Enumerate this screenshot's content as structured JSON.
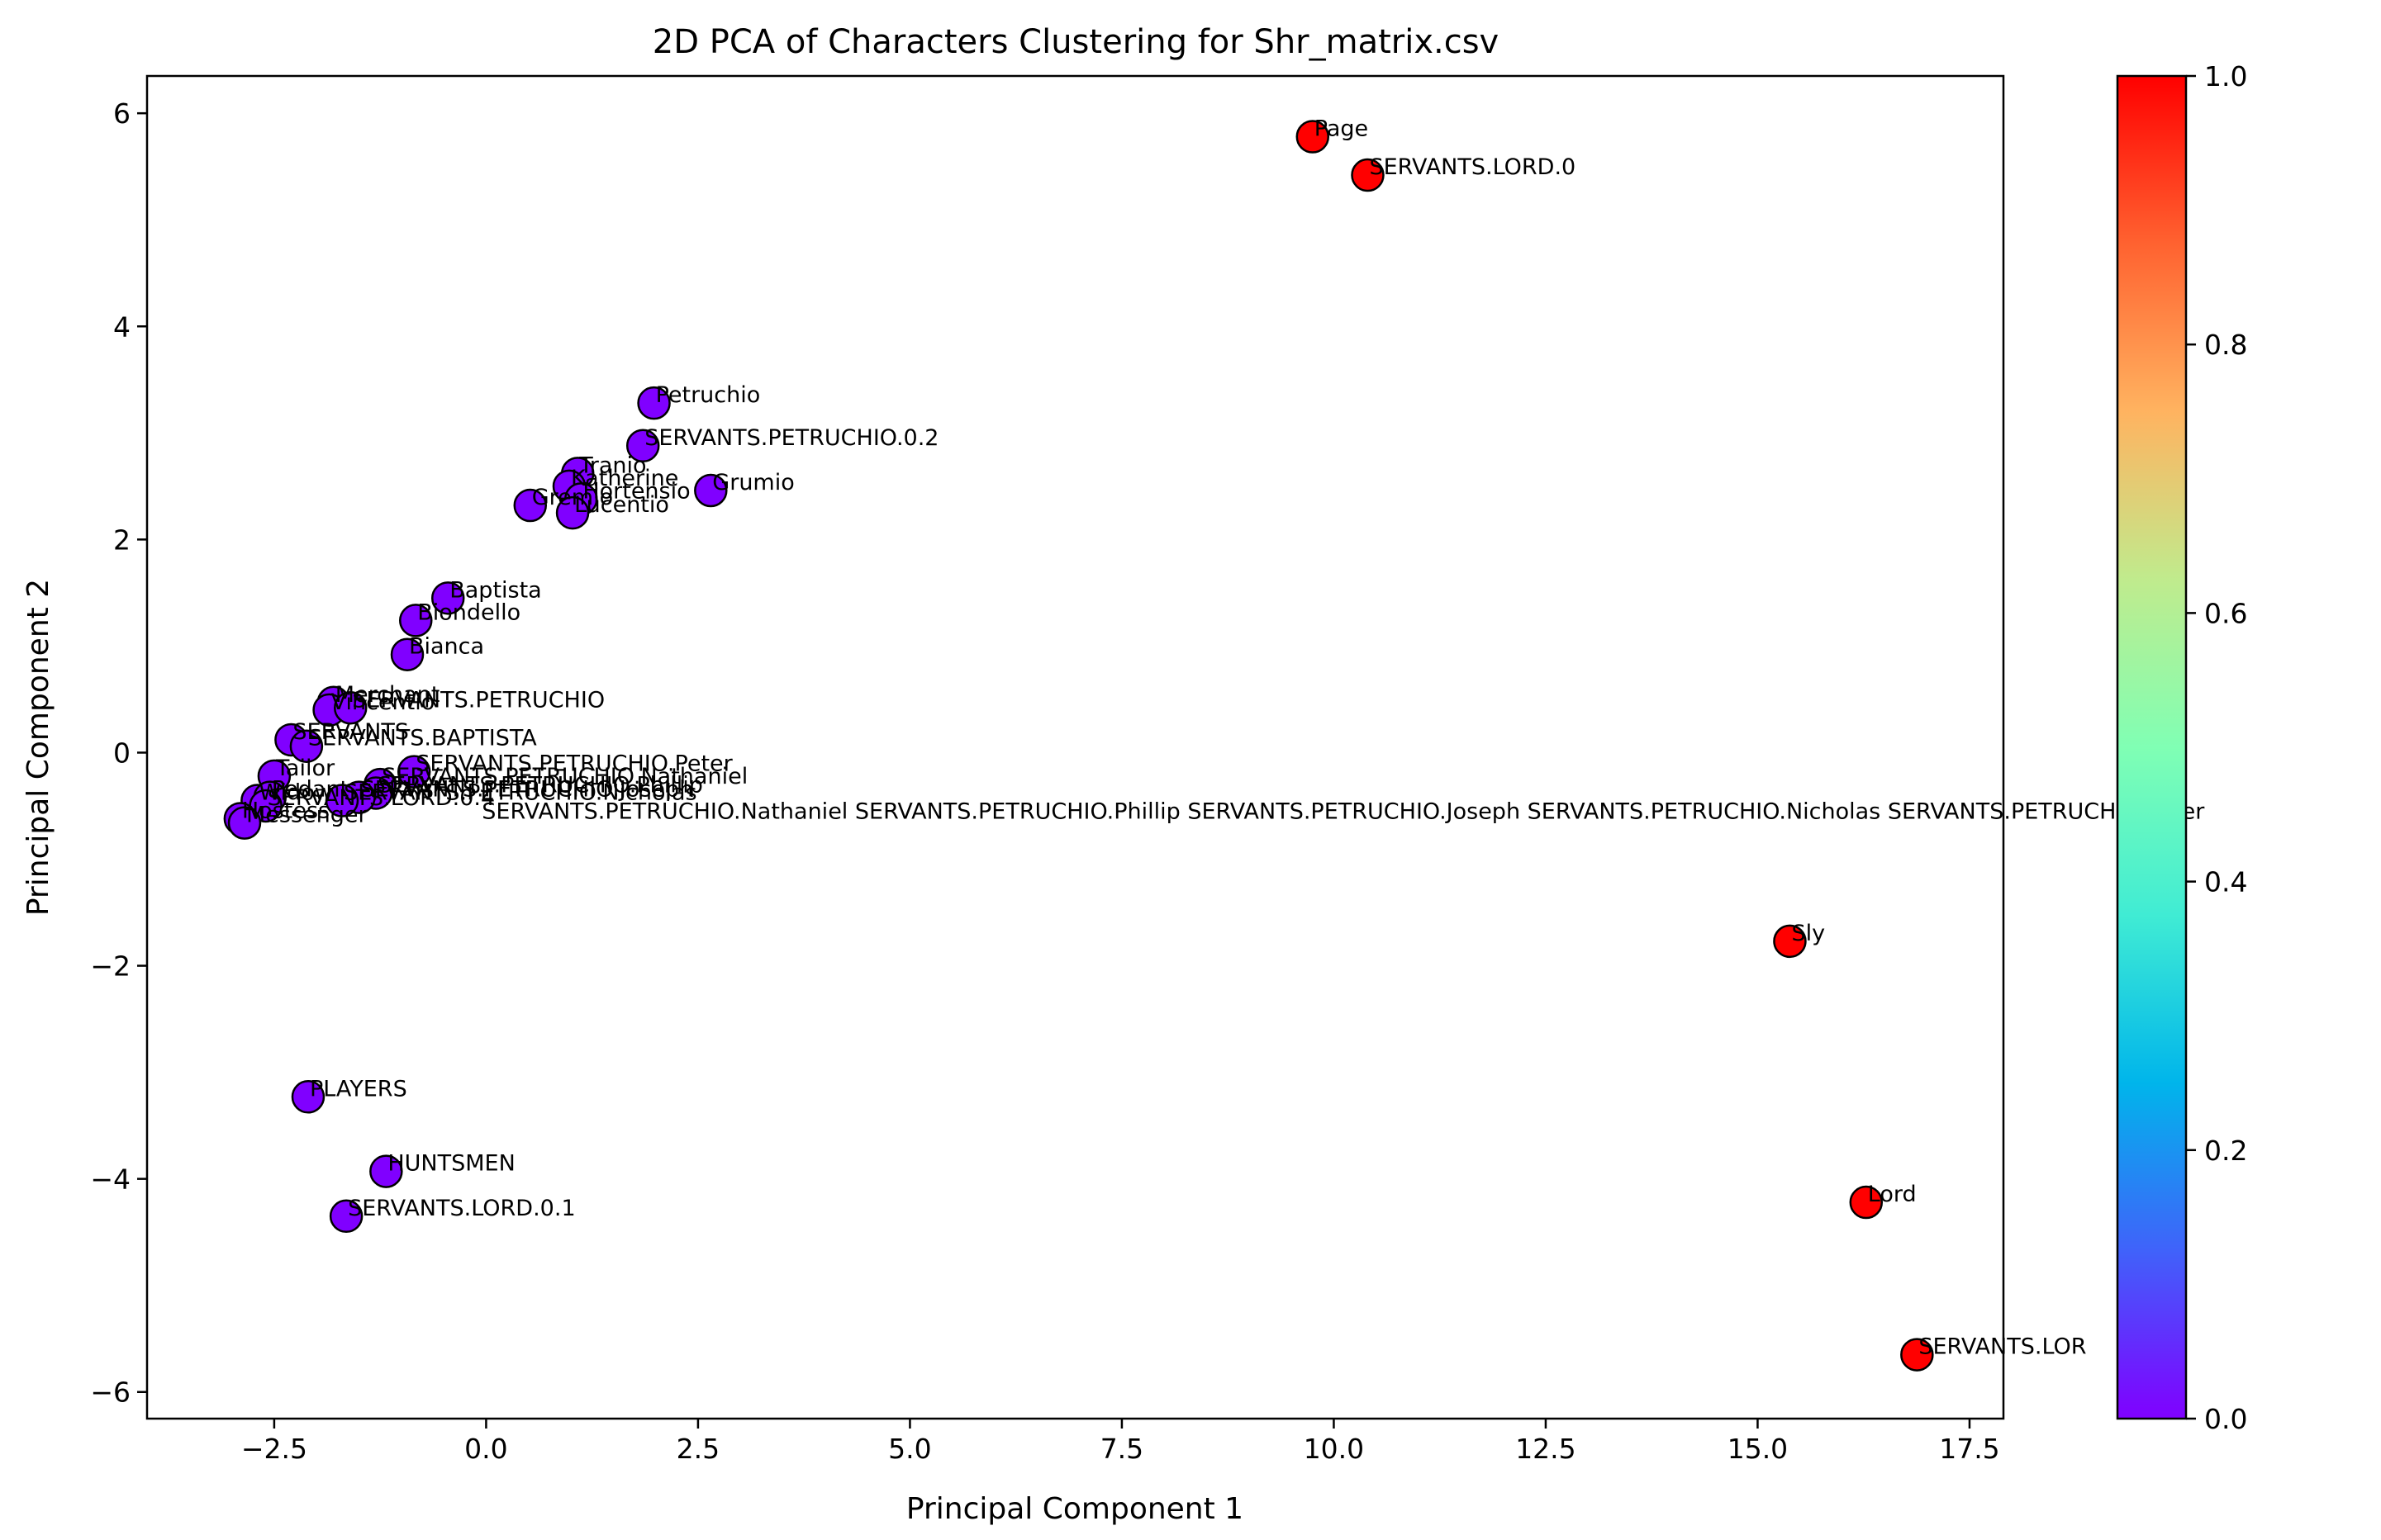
{
  "chart_data": {
    "type": "scatter",
    "title": "2D PCA of Characters Clustering for Shr_matrix.csv",
    "xlabel": "Principal Component 1",
    "ylabel": "Principal Component 2",
    "xlim": [
      -4.0,
      17.9
    ],
    "ylim": [
      -6.25,
      6.35
    ],
    "x_ticks": [
      -2.5,
      0.0,
      2.5,
      5.0,
      7.5,
      10.0,
      12.5,
      15.0,
      17.5
    ],
    "x_tick_labels": [
      "−2.5",
      "0.0",
      "2.5",
      "5.0",
      "7.5",
      "10.0",
      "12.5",
      "15.0",
      "17.5"
    ],
    "y_ticks": [
      -6,
      -4,
      -2,
      0,
      2,
      4,
      6
    ],
    "y_tick_labels": [
      "−6",
      "−4",
      "−2",
      "0",
      "2",
      "4",
      "6"
    ],
    "colorbar": {
      "range": [
        0.0,
        1.0
      ],
      "ticks": [
        0.0,
        0.2,
        0.4,
        0.6,
        0.8,
        1.0
      ],
      "tick_labels": [
        "0.0",
        "0.2",
        "0.4",
        "0.6",
        "0.8",
        "1.0"
      ],
      "colormap": "rainbow"
    },
    "cluster_colors": {
      "0": "#8000ff",
      "1": "#ff0000"
    },
    "points": [
      {
        "label": "Page",
        "x": 9.75,
        "y": 5.78,
        "cluster": 1
      },
      {
        "label": "SERVANTS.LORD.0",
        "x": 10.4,
        "y": 5.42,
        "cluster": 1
      },
      {
        "label": "Sly",
        "x": 15.38,
        "y": -1.77,
        "cluster": 1
      },
      {
        "label": "Lord",
        "x": 16.28,
        "y": -4.22,
        "cluster": 1
      },
      {
        "label": "SERVANTS.LOR",
        "x": 16.88,
        "y": -5.65,
        "cluster": 1
      },
      {
        "label": "Petruchio",
        "x": 1.98,
        "y": 3.28,
        "cluster": 0
      },
      {
        "label": "SERVANTS.PETRUCHIO.0.2",
        "x": 1.85,
        "y": 2.88,
        "cluster": 0
      },
      {
        "label": "Tranio",
        "x": 1.08,
        "y": 2.62,
        "cluster": 0
      },
      {
        "label": "Katherine",
        "x": 0.98,
        "y": 2.5,
        "cluster": 0
      },
      {
        "label": "Hortensio",
        "x": 1.12,
        "y": 2.38,
        "cluster": 0
      },
      {
        "label": "Grumio",
        "x": 2.65,
        "y": 2.46,
        "cluster": 0
      },
      {
        "label": "Gremio",
        "x": 0.52,
        "y": 2.32,
        "cluster": 0
      },
      {
        "label": "Lucentio",
        "x": 1.02,
        "y": 2.25,
        "cluster": 0
      },
      {
        "label": "Baptista",
        "x": -0.45,
        "y": 1.45,
        "cluster": 0
      },
      {
        "label": "Biondello",
        "x": -0.83,
        "y": 1.24,
        "cluster": 0
      },
      {
        "label": "Bianca",
        "x": -0.93,
        "y": 0.92,
        "cluster": 0
      },
      {
        "label": "Merchant",
        "x": -1.8,
        "y": 0.47,
        "cluster": 0
      },
      {
        "label": "Vincentio",
        "x": -1.85,
        "y": 0.4,
        "cluster": 0
      },
      {
        "label": "SERVANTS.PETRUCHIO",
        "x": -1.6,
        "y": 0.42,
        "cluster": 0
      },
      {
        "label": "SERVANTS",
        "x": -2.3,
        "y": 0.12,
        "cluster": 0
      },
      {
        "label": "SERVANTS.BAPTISTA",
        "x": -2.12,
        "y": 0.06,
        "cluster": 0
      },
      {
        "label": "SERVANTS.PETRUCHIO.Peter",
        "x": -0.85,
        "y": -0.18,
        "cluster": 0
      },
      {
        "label": "Tailor",
        "x": -2.5,
        "y": -0.22,
        "cluster": 0
      },
      {
        "label": "SERVANTS.PETRUCHIO.Nathaniel",
        "x": -1.25,
        "y": -0.3,
        "cluster": 0
      },
      {
        "label": "SERVANTS.PETRUCHIO.Phillip",
        "x": -1.3,
        "y": -0.38,
        "cluster": 0
      },
      {
        "label": "SERVANTS.PETRUCHIO.Joseph",
        "x": -1.5,
        "y": -0.42,
        "cluster": 0
      },
      {
        "label": "SERVANTS.PETRUCHIO.Nicholas",
        "x": -1.7,
        "y": -0.45,
        "cluster": 0
      },
      {
        "label": "Widow",
        "x": -2.7,
        "y": -0.45,
        "cluster": 0
      },
      {
        "label": "Pedant",
        "x": -2.55,
        "y": -0.42,
        "cluster": 0
      },
      {
        "label": "SERVANTS.LORD.0.4",
        "x": -2.6,
        "y": -0.5,
        "cluster": 0
      },
      {
        "label": "Hostess",
        "x": -2.9,
        "y": -0.62,
        "cluster": 0
      },
      {
        "label": "Messenger",
        "x": -2.85,
        "y": -0.66,
        "cluster": 0
      },
      {
        "label": "PLAYERS",
        "x": -2.1,
        "y": -3.23,
        "cluster": 0
      },
      {
        "label": "HUNTSMEN",
        "x": -1.18,
        "y": -3.93,
        "cluster": 0
      },
      {
        "label": "SERVANTS.LORD.0.1",
        "x": -1.65,
        "y": -4.35,
        "cluster": 0
      }
    ],
    "extra_annotations": [
      {
        "text": "SERVANTS.PETRUCHIO.Nathaniel SERVANTS.PETRUCHIO.Phillip SERVANTS.PETRUCHIO.Joseph SERVANTS.PETRUCHIO.Nicholas SERVANTS.PETRUCHIO.Peter",
        "x": -0.05,
        "y": -0.62
      }
    ]
  }
}
